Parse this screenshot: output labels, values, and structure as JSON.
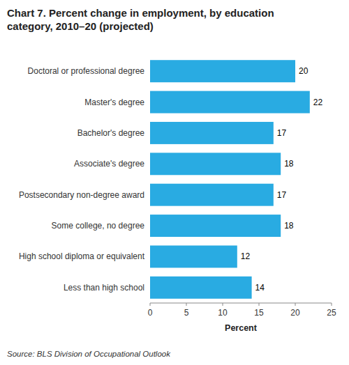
{
  "chart_data": {
    "type": "bar",
    "orientation": "horizontal",
    "title": "Chart 7. Percent change in employment, by education\ncategory, 2010–20 (projected)",
    "categories": [
      "Less than high school",
      "High school diploma or equivalent",
      "Some college, no degree",
      "Postsecondary non-degree award",
      "Associate's degree",
      "Bachelor's degree",
      "Master's degree",
      "Doctoral or professional degree"
    ],
    "values": [
      14,
      12,
      18,
      17,
      18,
      17,
      22,
      20
    ],
    "color": "#29ABE2",
    "xlabel": "Percent",
    "xlim": [
      0,
      25
    ],
    "xticks": [
      0,
      5,
      10,
      15,
      20,
      25
    ],
    "grid": false,
    "data_labels": true,
    "source": "Source: BLS Division of Occupational Outlook"
  }
}
